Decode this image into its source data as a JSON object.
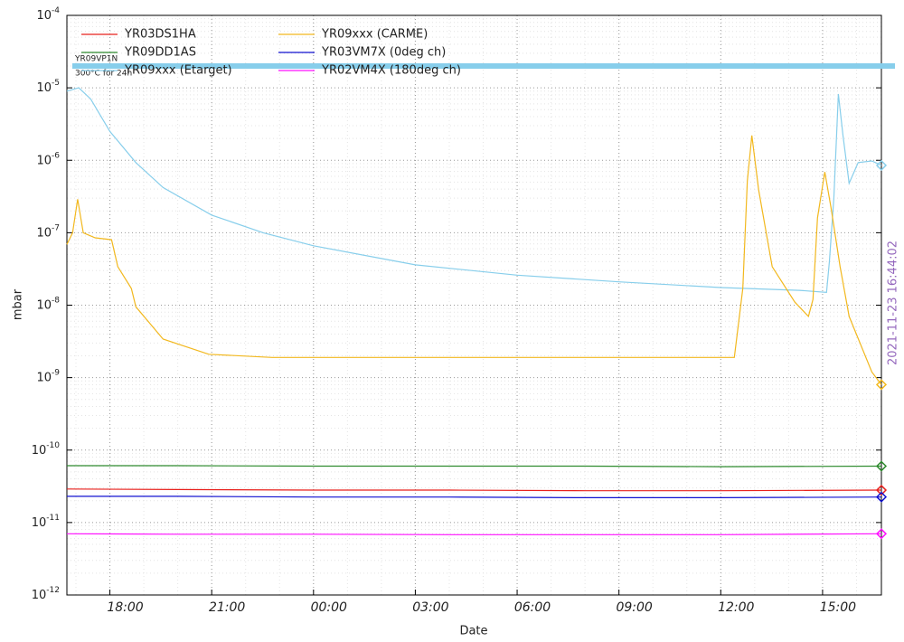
{
  "chart_data": {
    "type": "line",
    "x_label": "Date",
    "y_label": "mbar",
    "timestamp": "2021-11-23 16:44:02",
    "log_y": true,
    "grid": true,
    "xlim": [
      "16:44",
      "16:44"
    ],
    "xticks": [
      "18:00",
      "21:00",
      "00:00",
      "03:00",
      "06:00",
      "09:00",
      "12:00",
      "15:00"
    ],
    "ylim": [
      1e-12,
      0.0001
    ],
    "yticks": [
      {
        "value": 1e-12,
        "label": "10",
        "exponent": "-12"
      },
      {
        "value": 1e-11,
        "label": "10",
        "exponent": "-11"
      },
      {
        "value": 1e-10,
        "label": "10",
        "exponent": "-10"
      },
      {
        "value": 1e-09,
        "label": "10",
        "exponent": "-9"
      },
      {
        "value": 1e-08,
        "label": "10",
        "exponent": "-8"
      },
      {
        "value": 1e-07,
        "label": "10",
        "exponent": "-7"
      },
      {
        "value": 1e-06,
        "label": "10",
        "exponent": "-6"
      },
      {
        "value": 1e-05,
        "label": "10",
        "exponent": "-5"
      },
      {
        "value": 0.0001,
        "label": "10",
        "exponent": "-4"
      }
    ],
    "threshold": {
      "value": 2e-05,
      "color": "#87ceeb",
      "label": "YR09VP1N",
      "note": "300°C for 24h"
    },
    "series": [
      {
        "name": "YR03DS1HA",
        "color": "#e8201c",
        "x": [
          "16:44",
          "20:00",
          "00:00",
          "04:00",
          "08:00",
          "12:00",
          "16:44"
        ],
        "values": [
          2.9e-11,
          2.85e-11,
          2.8e-11,
          2.8e-11,
          2.75e-11,
          2.75e-11,
          2.8e-11
        ]
      },
      {
        "name": "YR09DD1AS",
        "color": "#2e8b2e",
        "x": [
          "16:44",
          "20:00",
          "00:00",
          "04:00",
          "08:00",
          "12:00",
          "16:44"
        ],
        "values": [
          6.1e-11,
          6.1e-11,
          6e-11,
          6e-11,
          6e-11,
          5.9e-11,
          6e-11
        ]
      },
      {
        "name": "YR09xxx (Etarget)",
        "color": "#87ceeb",
        "x": [
          "16:44",
          "17:05",
          "17:26",
          "18:00",
          "18:46",
          "19:34",
          "21:00",
          "22:31",
          "00:00",
          "03:00",
          "06:00",
          "09:00",
          "12:00",
          "14:19",
          "15:07",
          "15:12",
          "15:20",
          "15:28",
          "15:36",
          "15:47",
          "16:03",
          "16:27",
          "16:44"
        ],
        "values": [
          9e-06,
          1e-05,
          7e-06,
          2.5e-06,
          9.3e-07,
          4.2e-07,
          1.75e-07,
          1e-07,
          6.6e-08,
          3.6e-08,
          2.6e-08,
          2.1e-08,
          1.75e-08,
          1.6e-08,
          1.5e-08,
          3.9e-08,
          3e-07,
          8.2e-06,
          2.2e-06,
          4.8e-07,
          9.3e-07,
          9.8e-07,
          8.5e-07
        ]
      },
      {
        "name": "YR09xxx (CARME)",
        "color": "#f2b81e",
        "x": [
          "16:44",
          "16:54",
          "17:03",
          "17:13",
          "17:34",
          "18:03",
          "18:14",
          "18:38",
          "18:46",
          "19:34",
          "20:55",
          "22:47",
          "04:09",
          "12:24",
          "12:30",
          "12:39",
          "12:47",
          "12:55",
          "13:07",
          "13:31",
          "14:11",
          "14:35",
          "14:43",
          "14:51",
          "15:04",
          "15:15",
          "15:31",
          "15:47",
          "16:27",
          "16:44"
        ],
        "values": [
          6.9e-08,
          1e-07,
          2.9e-07,
          1e-07,
          8.5e-08,
          8e-08,
          3.4e-08,
          1.7e-08,
          9.5e-09,
          3.4e-09,
          2.1e-09,
          1.9e-09,
          1.9e-09,
          1.9e-09,
          4.6e-09,
          1.7e-08,
          5.2e-07,
          2.2e-06,
          3.9e-07,
          3.4e-08,
          1.1e-08,
          7e-09,
          1.2e-08,
          1.6e-07,
          6.9e-07,
          2.2e-07,
          3.4e-08,
          7e-09,
          1.2e-09,
          8e-10
        ]
      },
      {
        "name": "YR03VM7X (0deg ch)",
        "color": "#1010d0",
        "x": [
          "16:44",
          "20:00",
          "00:00",
          "04:00",
          "08:00",
          "12:00",
          "16:44"
        ],
        "values": [
          2.3e-11,
          2.3e-11,
          2.25e-11,
          2.25e-11,
          2.2e-11,
          2.2e-11,
          2.25e-11
        ]
      },
      {
        "name": "YR02VM4X (180deg ch)",
        "color": "#ff10ff",
        "x": [
          "16:44",
          "20:00",
          "00:00",
          "04:00",
          "08:00",
          "12:00",
          "16:44"
        ],
        "values": [
          7e-12,
          6.9e-12,
          6.9e-12,
          6.8e-12,
          6.8e-12,
          6.8e-12,
          7e-12
        ]
      }
    ]
  }
}
